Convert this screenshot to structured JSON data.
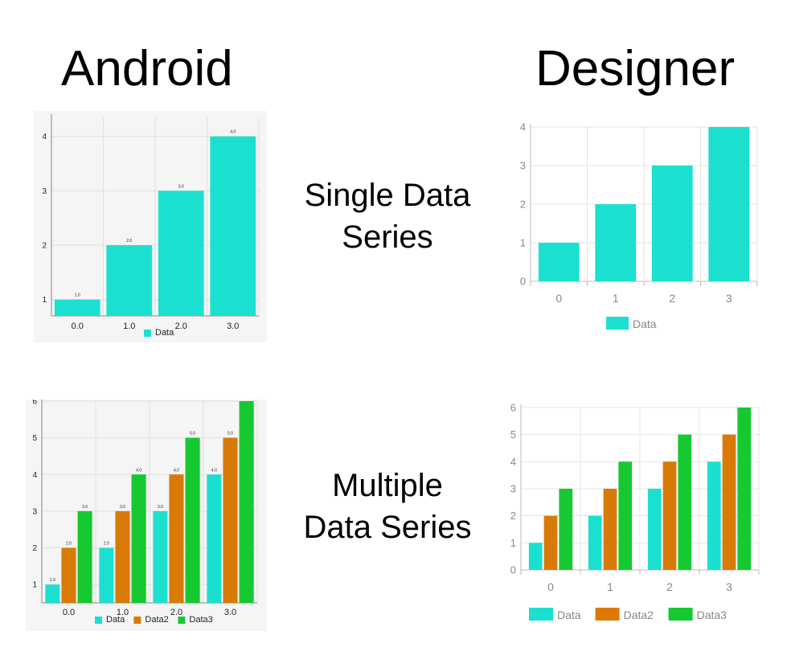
{
  "headings": {
    "left": "Android",
    "right": "Designer"
  },
  "row_labels": {
    "single": [
      "Single Data",
      "Series"
    ],
    "multiple": [
      "Multiple",
      "Data Series"
    ]
  },
  "colors": {
    "Data": "#1ce0cf",
    "Data2": "#d97a06",
    "Data3": "#16c930"
  },
  "chart_data": [
    {
      "id": "android-single",
      "type": "bar",
      "style": "android",
      "categories": [
        "0.0",
        "1.0",
        "2.0",
        "3.0"
      ],
      "series": [
        {
          "name": "Data",
          "values": [
            1,
            2,
            3,
            4
          ]
        }
      ],
      "value_labels": true,
      "yticks": [
        "1",
        "2",
        "3",
        "4"
      ],
      "ylim": [
        0.7,
        4.35
      ],
      "grid": true,
      "legend": "bottom"
    },
    {
      "id": "designer-single",
      "type": "bar",
      "style": "designer",
      "categories": [
        "0",
        "1",
        "2",
        "3"
      ],
      "series": [
        {
          "name": "Data",
          "values": [
            1,
            2,
            3,
            4
          ]
        }
      ],
      "value_labels": false,
      "yticks": [
        "0",
        "1",
        "2",
        "3",
        "4"
      ],
      "ylim": [
        0,
        4
      ],
      "grid": true,
      "legend": "bottom"
    },
    {
      "id": "android-multi",
      "type": "bar",
      "style": "android",
      "categories": [
        "0.0",
        "1.0",
        "2.0",
        "3.0"
      ],
      "series": [
        {
          "name": "Data",
          "values": [
            1,
            2,
            3,
            4
          ]
        },
        {
          "name": "Data2",
          "values": [
            2,
            3,
            4,
            5
          ]
        },
        {
          "name": "Data3",
          "values": [
            3,
            4,
            5,
            6
          ]
        }
      ],
      "value_labels": true,
      "yticks": [
        "1",
        "2",
        "3",
        "4",
        "5",
        "6"
      ],
      "ylim": [
        0.5,
        6
      ],
      "grid": true,
      "legend": "bottom"
    },
    {
      "id": "designer-multi",
      "type": "bar",
      "style": "designer",
      "categories": [
        "0",
        "1",
        "2",
        "3"
      ],
      "series": [
        {
          "name": "Data",
          "values": [
            1,
            2,
            3,
            4
          ]
        },
        {
          "name": "Data2",
          "values": [
            2,
            3,
            4,
            5
          ]
        },
        {
          "name": "Data3",
          "values": [
            3,
            4,
            5,
            6
          ]
        }
      ],
      "value_labels": false,
      "yticks": [
        "0",
        "1",
        "2",
        "3",
        "4",
        "5",
        "6"
      ],
      "ylim": [
        0,
        6
      ],
      "grid": true,
      "legend": "bottom"
    }
  ]
}
